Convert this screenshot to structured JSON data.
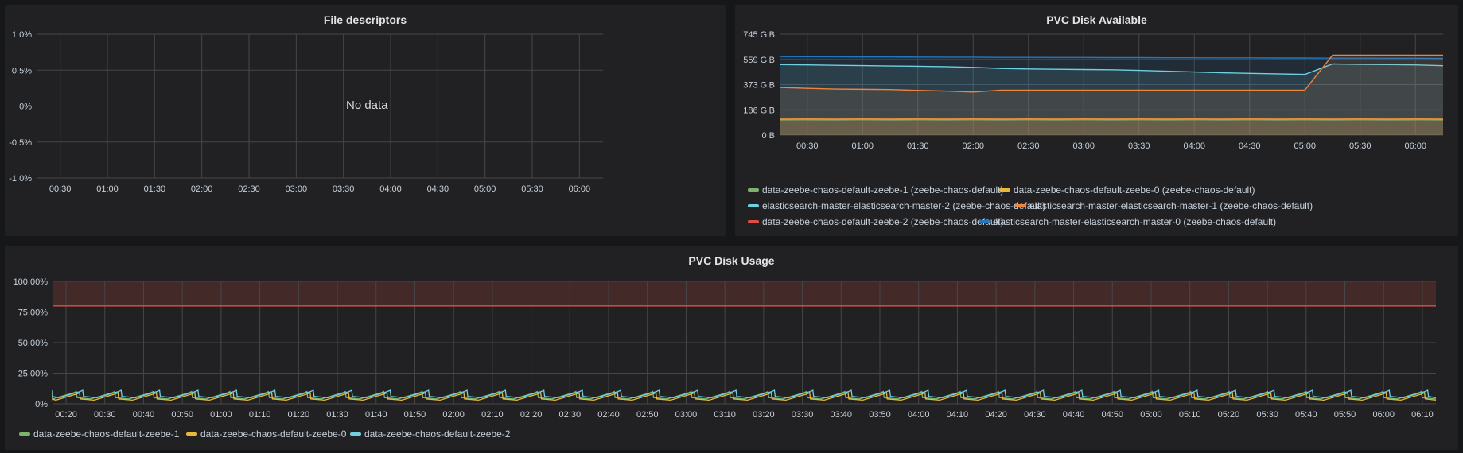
{
  "panels": {
    "fd": {
      "title": "File descriptors",
      "no_data": "No data"
    },
    "pvc_avail": {
      "title": "PVC Disk Available"
    },
    "pvc_usage": {
      "title": "PVC Disk Usage"
    }
  },
  "chart_data": [
    {
      "id": "fd",
      "type": "line",
      "title": "File descriptors",
      "y_ticks": [
        "1.0%",
        "0.5%",
        "0%",
        "-0.5%",
        "-1.0%"
      ],
      "ylim": [
        -1.0,
        1.0
      ],
      "x_ticks": [
        "00:30",
        "01:00",
        "01:30",
        "02:00",
        "02:30",
        "03:00",
        "03:30",
        "04:00",
        "04:30",
        "05:00",
        "05:30",
        "06:00"
      ],
      "grid": true,
      "series": []
    },
    {
      "id": "pvc_avail",
      "type": "area",
      "title": "PVC Disk Available",
      "y_unit": "GiB",
      "y_ticks": [
        "745 GiB",
        "559 GiB",
        "373 GiB",
        "186 GiB",
        "0 B"
      ],
      "ylim": [
        0,
        745
      ],
      "x_ticks": [
        "00:30",
        "01:00",
        "01:30",
        "02:00",
        "02:30",
        "03:00",
        "03:30",
        "04:00",
        "04:30",
        "05:00",
        "05:30",
        "06:00"
      ],
      "x": [
        "00:15",
        "00:30",
        "00:45",
        "01:00",
        "01:15",
        "01:30",
        "01:45",
        "02:00",
        "02:15",
        "02:30",
        "02:45",
        "03:00",
        "03:15",
        "03:30",
        "03:45",
        "04:00",
        "04:15",
        "04:30",
        "04:45",
        "05:00",
        "05:15",
        "05:30",
        "05:45",
        "06:00",
        "06:15"
      ],
      "grid": true,
      "legend_position": "bottom",
      "series": [
        {
          "name": "data-zeebe-chaos-default-zeebe-1 (zeebe-chaos-default)",
          "color": "#7eb26d",
          "values": [
            112,
            113,
            112,
            113,
            112,
            113,
            112,
            113,
            112,
            113,
            112,
            113,
            112,
            113,
            112,
            113,
            112,
            113,
            112,
            113,
            112,
            113,
            112,
            113,
            112
          ]
        },
        {
          "name": "data-zeebe-chaos-default-zeebe-0 (zeebe-chaos-default)",
          "color": "#eab839",
          "values": [
            116,
            117,
            116,
            117,
            116,
            117,
            116,
            117,
            116,
            117,
            116,
            117,
            116,
            117,
            116,
            117,
            116,
            117,
            116,
            117,
            116,
            117,
            116,
            117,
            116
          ]
        },
        {
          "name": "elasticsearch-master-elasticsearch-master-2 (zeebe-chaos-default)",
          "color": "#6ed0e0",
          "values": [
            520,
            518,
            515,
            513,
            510,
            508,
            505,
            500,
            492,
            488,
            486,
            484,
            482,
            478,
            472,
            466,
            460,
            456,
            452,
            448,
            525,
            522,
            520,
            518,
            512
          ]
        },
        {
          "name": "elasticsearch-master-elasticsearch-master-1 (zeebe-chaos-default)",
          "color": "#ef843c",
          "values": [
            352,
            345,
            340,
            338,
            336,
            330,
            325,
            318,
            332,
            332,
            332,
            332,
            332,
            332,
            332,
            332,
            332,
            332,
            332,
            332,
            590,
            590,
            590,
            590,
            590
          ]
        },
        {
          "name": "data-zeebe-chaos-default-zeebe-2 (zeebe-chaos-default)",
          "color": "#e24d42",
          "values": [
            118,
            119,
            118,
            119,
            118,
            119,
            118,
            119,
            118,
            119,
            118,
            119,
            118,
            119,
            118,
            119,
            118,
            119,
            118,
            119,
            118,
            119,
            118,
            119,
            118
          ]
        },
        {
          "name": "elasticsearch-master-elasticsearch-master-0 (zeebe-chaos-default)",
          "color": "#1f78c1",
          "values": [
            580,
            579,
            578,
            577,
            577,
            576,
            575,
            575,
            574,
            574,
            573,
            573,
            572,
            572,
            571,
            571,
            570,
            570,
            569,
            569,
            568,
            568,
            567,
            567,
            566
          ]
        }
      ]
    },
    {
      "id": "pvc_usage",
      "type": "line",
      "title": "PVC Disk Usage",
      "y_ticks": [
        "100.00%",
        "75.00%",
        "50.00%",
        "25.00%",
        "0%"
      ],
      "ylim": [
        0,
        100
      ],
      "threshold": {
        "value": 80,
        "color": "#e24d42"
      },
      "x_ticks": [
        "00:20",
        "00:30",
        "00:40",
        "00:50",
        "01:00",
        "01:10",
        "01:20",
        "01:30",
        "01:40",
        "01:50",
        "02:00",
        "02:10",
        "02:20",
        "02:30",
        "02:40",
        "02:50",
        "03:00",
        "03:10",
        "03:20",
        "03:30",
        "03:40",
        "03:50",
        "04:00",
        "04:10",
        "04:20",
        "04:30",
        "04:40",
        "04:50",
        "05:00",
        "05:10",
        "05:20",
        "05:30",
        "05:40",
        "05:50",
        "06:00",
        "06:10"
      ],
      "grid": true,
      "legend_position": "bottom-left",
      "series": [
        {
          "name": "data-zeebe-chaos-default-zeebe-1",
          "color": "#7eb26d",
          "min": 4,
          "max": 10
        },
        {
          "name": "data-zeebe-chaos-default-zeebe-0",
          "color": "#eab839",
          "min": 3,
          "max": 9
        },
        {
          "name": "data-zeebe-chaos-default-zeebe-2",
          "color": "#6ed0e0",
          "min": 5,
          "max": 11
        }
      ]
    }
  ]
}
